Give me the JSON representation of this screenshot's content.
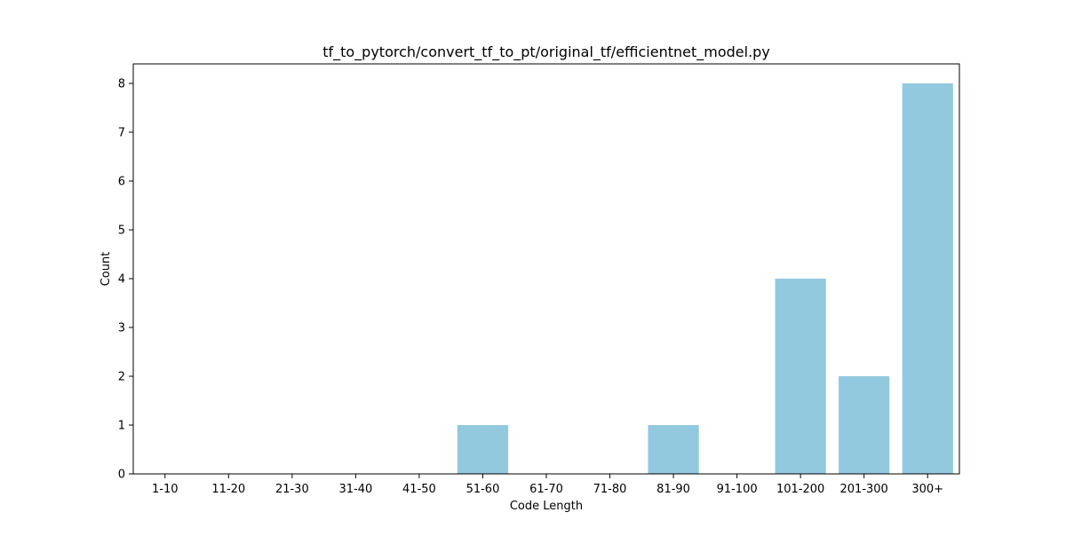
{
  "chart_data": {
    "type": "bar",
    "title": "tf_to_pytorch/convert_tf_to_pt/original_tf/efficientnet_model.py",
    "xlabel": "Code Length",
    "ylabel": "Count",
    "categories": [
      "1-10",
      "11-20",
      "21-30",
      "31-40",
      "41-50",
      "51-60",
      "61-70",
      "71-80",
      "81-90",
      "91-100",
      "101-200",
      "201-300",
      "300+"
    ],
    "values": [
      0,
      0,
      0,
      0,
      0,
      1,
      0,
      0,
      1,
      0,
      4,
      2,
      8
    ],
    "ylim": [
      0,
      8.4
    ],
    "yticks": [
      "0",
      "1",
      "2",
      "3",
      "4",
      "5",
      "6",
      "7",
      "8"
    ],
    "grid": false,
    "legend": "none",
    "colors": {
      "bar": "#92c9df",
      "axis": "#000000"
    }
  }
}
